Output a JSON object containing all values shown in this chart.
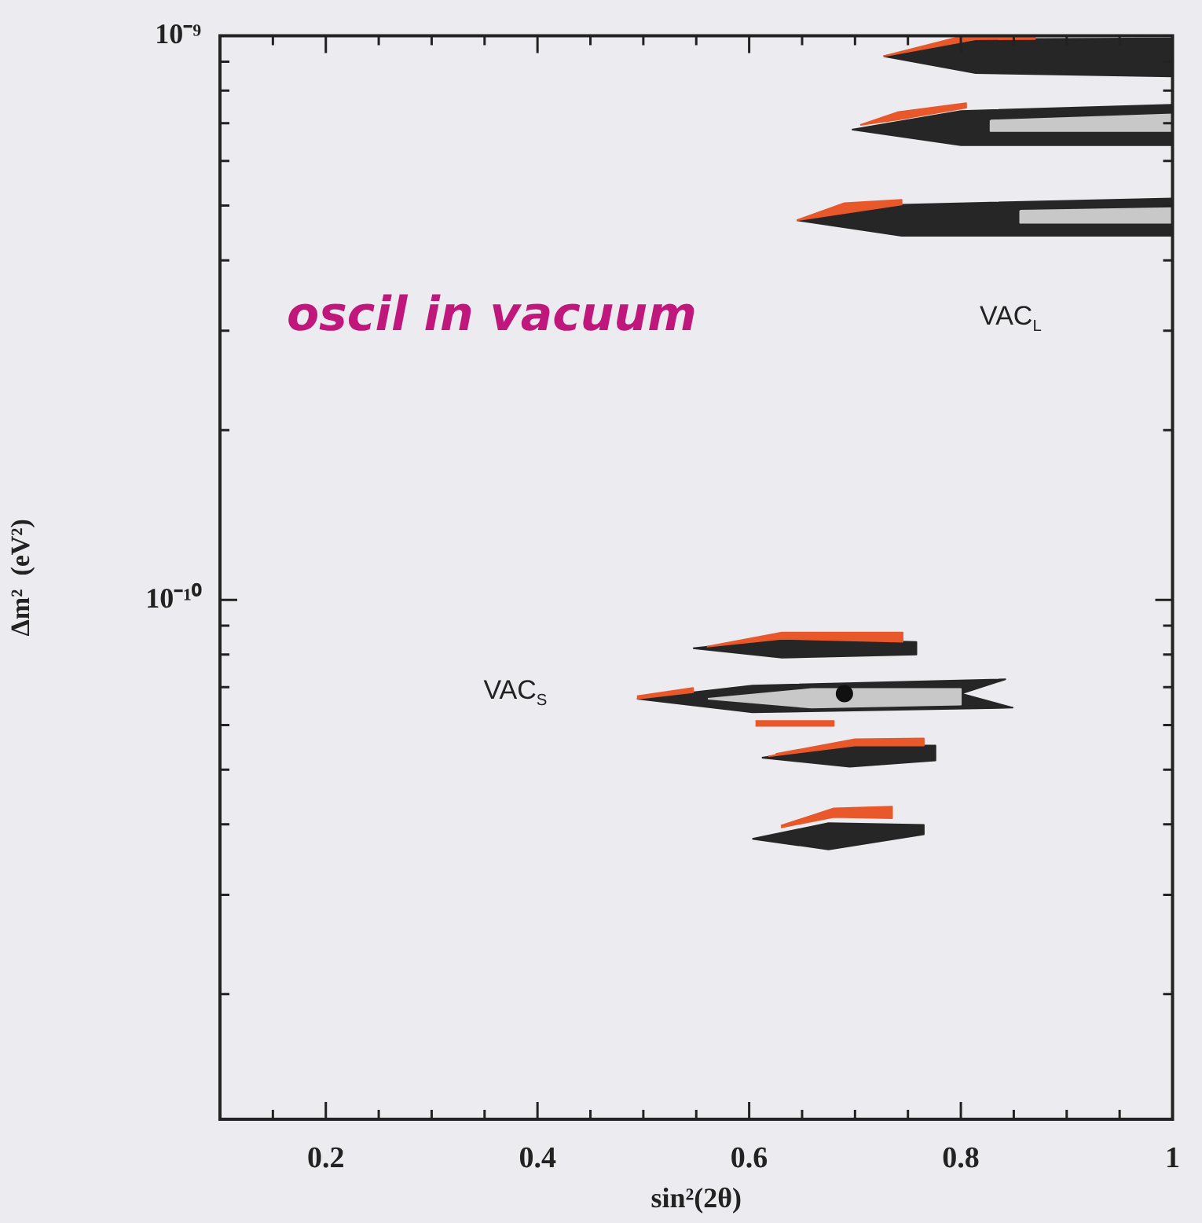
{
  "chart_data": {
    "type": "area",
    "xlabel": "sin²(2θ)",
    "ylabel": "Δm²  (eV²)",
    "annotations": [
      "oscil in vacuum",
      "VAC$_{L}$",
      "VAC$_{S}$"
    ],
    "xlim": [
      0.1,
      1
    ],
    "ylim": [
      1.2e-11,
      1e-09
    ],
    "log": "y",
    "grid": false,
    "legend": false,
    "xticks": [
      {
        "value": 0.15,
        "label": null
      },
      0.2,
      {
        "value": 0.25,
        "label": null
      },
      {
        "value": 0.3,
        "label": null
      },
      {
        "value": 0.35,
        "label": null
      },
      0.4,
      {
        "value": 0.45,
        "label": null
      },
      {
        "value": 0.5,
        "label": null
      },
      {
        "value": 0.55,
        "label": null
      },
      0.6,
      {
        "value": 0.65,
        "label": null
      },
      {
        "value": 0.7,
        "label": null
      },
      {
        "value": 0.75,
        "label": null
      },
      0.8,
      {
        "value": 0.85,
        "label": null
      },
      {
        "value": 0.9,
        "label": null
      },
      {
        "value": 0.95,
        "label": null
      },
      1
    ],
    "yticks": [
      {
        "value": 2e-11,
        "label": null
      },
      {
        "value": 3e-11,
        "label": null
      },
      {
        "value": 4e-11,
        "label": null
      },
      {
        "value": 5e-11,
        "label": null
      },
      {
        "value": 6e-11,
        "label": null
      },
      {
        "value": 7e-11,
        "label": null
      },
      {
        "value": 8e-11,
        "label": null
      },
      {
        "value": 9e-11,
        "label": null
      },
      {
        "value": 1e-10,
        "label": "10⁻¹⁰"
      },
      {
        "value": 2e-10,
        "label": null
      },
      {
        "value": 3e-10,
        "label": null
      },
      {
        "value": 4e-10,
        "label": null
      },
      {
        "value": 5e-10,
        "label": null
      },
      {
        "value": 6e-10,
        "label": null
      },
      {
        "value": 7e-10,
        "label": null
      },
      {
        "value": 8e-10,
        "label": null
      },
      {
        "value": 9e-10,
        "label": null
      },
      {
        "value": 1e-09,
        "label": "10⁻⁹"
      }
    ],
    "series": [
      {
        "color": "#262626",
        "x": [
          0.727,
          0.814,
          1.0,
          1.0,
          0.814,
          0.727
        ],
        "values": [
          9.2e-10,
          9.86e-10,
          9.9e-10,
          8.47e-10,
          8.59e-10,
          9.2e-10
        ]
      },
      {
        "color": "#262626",
        "x": [
          0.697,
          0.8,
          1.0,
          1.0,
          0.8,
          0.697
        ],
        "values": [
          6.82e-10,
          7.36e-10,
          7.55e-10,
          6.4e-10,
          6.4e-10,
          6.82e-10
        ]
      },
      {
        "color": "#262626",
        "x": [
          0.645,
          0.744,
          1.0,
          1.0,
          0.744,
          0.645
        ],
        "values": [
          4.71e-10,
          5.02e-10,
          5.15e-10,
          4.42e-10,
          4.42e-10,
          4.71e-10
        ]
      },
      {
        "color": "#262626",
        "x": [
          0.547,
          0.631,
          0.758,
          0.758,
          0.631,
          0.547
        ],
        "values": [
          8.21e-11,
          8.53e-11,
          8.42e-11,
          8e-11,
          7.9e-11,
          8.21e-11
        ]
      },
      {
        "color": "#262626",
        "x": [
          0.494,
          0.603,
          0.842,
          0.8,
          0.849,
          0.603,
          0.494
        ],
        "values": [
          6.68e-11,
          7.05e-11,
          7.23e-11,
          6.82e-11,
          6.44e-11,
          6.32e-11,
          6.68e-11
        ]
      },
      {
        "color": "#262626",
        "x": [
          0.612,
          0.695,
          0.776,
          0.776,
          0.695,
          0.612
        ],
        "values": [
          5.25e-11,
          5.52e-11,
          5.52e-11,
          5.19e-11,
          5.06e-11,
          5.25e-11
        ]
      },
      {
        "color": "#262626",
        "x": [
          0.603,
          0.675,
          0.765,
          0.765,
          0.675,
          0.603
        ],
        "values": [
          3.77e-11,
          4.02e-11,
          3.99e-11,
          3.84e-11,
          3.61e-11,
          3.77e-11
        ]
      },
      {
        "color": "#e8582a",
        "x": [
          0.727,
          0.814,
          0.87,
          0.87,
          0.8,
          0.727
        ],
        "values": [
          9.2e-10,
          9.86e-10,
          9.87e-10,
          9.97e-10,
          9.97e-10,
          9.2e-10
        ]
      },
      {
        "color": "#e8582a",
        "x": [
          0.705,
          0.74,
          0.805,
          0.805,
          0.74,
          0.705
        ],
        "values": [
          6.95e-10,
          7.1e-10,
          7.46e-10,
          7.6e-10,
          7.32e-10,
          6.95e-10
        ]
      },
      {
        "color": "#e8582a",
        "x": [
          0.645,
          0.744,
          0.744,
          0.69,
          0.645
        ],
        "values": [
          4.71e-10,
          5.02e-10,
          5.12e-10,
          5.05e-10,
          4.71e-10
        ]
      },
      {
        "color": "#e8582a",
        "x": [
          0.56,
          0.631,
          0.745,
          0.745,
          0.631,
          0.56
        ],
        "values": [
          8.26e-11,
          8.53e-11,
          8.43e-11,
          8.75e-11,
          8.75e-11,
          8.26e-11
        ]
      },
      {
        "color": "#e8582a",
        "x": [
          0.494,
          0.547,
          0.547,
          0.494
        ],
        "values": [
          6.68e-11,
          6.86e-11,
          6.98e-11,
          6.75e-11
        ]
      },
      {
        "color": "#e8582a",
        "x": [
          0.606,
          0.68,
          0.68,
          0.606
        ],
        "values": [
          6.1e-11,
          6.1e-11,
          5.98e-11,
          5.98e-11
        ]
      },
      {
        "color": "#e8582a",
        "x": [
          0.618,
          0.7,
          0.765,
          0.765,
          0.7,
          0.625
        ],
        "values": [
          5.28e-11,
          5.52e-11,
          5.52e-11,
          5.68e-11,
          5.66e-11,
          5.33e-11
        ]
      },
      {
        "color": "#e8582a",
        "x": [
          0.63,
          0.68,
          0.735,
          0.735,
          0.68,
          0.63
        ],
        "values": [
          3.95e-11,
          4.12e-11,
          4.1e-11,
          4.3e-11,
          4.27e-11,
          3.98e-11
        ]
      },
      {
        "color": "#c8c8c8",
        "x": [
          0.561,
          0.659,
          0.8,
          0.8,
          0.659,
          0.561
        ],
        "values": [
          6.68e-11,
          6.95e-11,
          6.95e-11,
          6.52e-11,
          6.44e-11,
          6.68e-11
        ]
      },
      {
        "color": "#c8c8c8",
        "x": [
          0.828,
          1.0,
          1.0,
          0.828,
          0.828
        ],
        "values": [
          7.08e-10,
          7.26e-10,
          6.78e-10,
          6.78e-10,
          7.08e-10
        ]
      },
      {
        "color": "#c8c8c8",
        "x": [
          0.856,
          1.0,
          1.0,
          0.856,
          0.856
        ],
        "values": [
          4.9e-10,
          4.95e-10,
          4.66e-10,
          4.66e-10,
          4.9e-10
        ]
      },
      {
        "type": "scatter",
        "color": "#111111",
        "marker": "circle",
        "x": [
          0.69
        ],
        "values": [
          6.82e-11
        ]
      }
    ]
  }
}
